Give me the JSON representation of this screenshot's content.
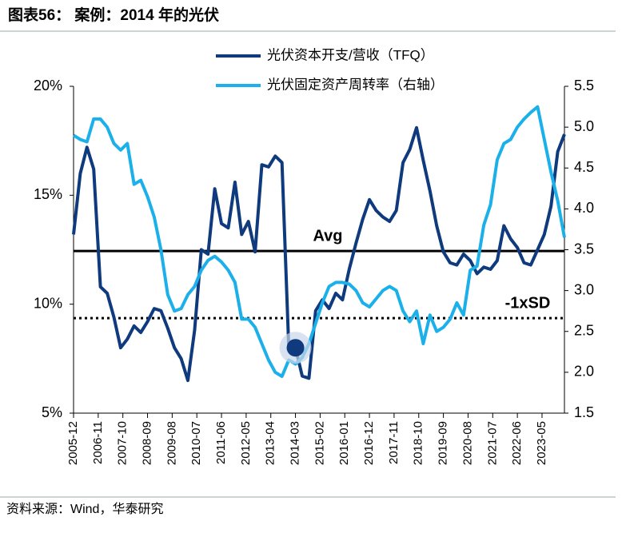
{
  "title": "图表56：  案例：2014 年的光伏",
  "source": "资料来源：Wind，华泰研究",
  "chart_data": {
    "type": "line",
    "x": [
      "2005-12",
      "2006-03",
      "2006-06",
      "2006-09",
      "2006-12",
      "2007-03",
      "2007-06",
      "2007-09",
      "2007-12",
      "2008-03",
      "2008-06",
      "2008-09",
      "2008-12",
      "2009-03",
      "2009-06",
      "2009-09",
      "2009-12",
      "2010-03",
      "2010-06",
      "2010-09",
      "2010-12",
      "2011-03",
      "2011-06",
      "2011-09",
      "2011-12",
      "2012-03",
      "2012-06",
      "2012-09",
      "2012-12",
      "2013-03",
      "2013-06",
      "2013-09",
      "2013-12",
      "2014-03",
      "2014-06",
      "2014-09",
      "2014-12",
      "2015-03",
      "2015-06",
      "2015-09",
      "2015-12",
      "2016-03",
      "2016-06",
      "2016-09",
      "2016-12",
      "2017-03",
      "2017-06",
      "2017-09",
      "2017-12",
      "2018-03",
      "2018-06",
      "2018-09",
      "2018-12",
      "2019-03",
      "2019-06",
      "2019-09",
      "2019-12",
      "2020-03",
      "2020-06",
      "2020-09",
      "2020-12",
      "2021-03",
      "2021-06",
      "2021-09",
      "2021-12",
      "2022-03",
      "2022-06",
      "2022-09",
      "2022-12",
      "2023-03",
      "2023-06",
      "2023-09",
      "2023-12",
      "2024-03"
    ],
    "xlim": [
      "2005-12",
      "2024-03"
    ],
    "xticks": [
      "2005-12",
      "2006-11",
      "2007-10",
      "2008-09",
      "2009-08",
      "2010-07",
      "2011-06",
      "2012-05",
      "2013-04",
      "2014-03",
      "2015-02",
      "2016-01",
      "2016-12",
      "2017-11",
      "2018-10",
      "2019-09",
      "2020-08",
      "2021-07",
      "2022-06",
      "2023-05"
    ],
    "ylim": [
      5,
      20
    ],
    "yticks": [
      {
        "value": 5,
        "label": "5%"
      },
      {
        "value": 10,
        "label": "10%"
      },
      {
        "value": 15,
        "label": "15%"
      },
      {
        "value": 20,
        "label": "20%"
      }
    ],
    "y2lim": [
      1.5,
      5.5
    ],
    "y2ticks": [
      1.5,
      {
        "value": 2,
        "label": "2.0"
      },
      2.5,
      {
        "value": 3,
        "label": "3.0"
      },
      3.5,
      {
        "value": 4,
        "label": "4.0"
      },
      4.5,
      {
        "value": 5,
        "label": "5.0"
      },
      5.5
    ],
    "series": [
      {
        "name": "光伏资本开支/营收（TFQ）",
        "color": "#0f3a7d",
        "values": [
          13.2,
          16.0,
          17.2,
          16.2,
          10.8,
          10.5,
          9.4,
          8.0,
          8.4,
          9.0,
          8.7,
          9.2,
          9.8,
          9.7,
          8.9,
          8.0,
          7.5,
          6.5,
          8.8,
          12.5,
          12.3,
          15.3,
          13.7,
          13.5,
          15.6,
          13.2,
          13.8,
          12.4,
          16.4,
          16.3,
          16.8,
          16.5,
          8.0,
          8.0,
          6.7,
          6.6,
          9.7,
          10.2,
          9.8,
          10.5,
          10.2,
          11.6,
          12.8,
          13.9,
          14.8,
          14.3,
          14.0,
          13.8,
          14.3,
          16.5,
          17.1,
          18.1,
          16.6,
          15.2,
          13.6,
          12.4,
          11.9,
          11.8,
          12.3,
          12.0,
          11.4,
          11.7,
          11.6,
          12.0,
          13.6,
          13.0,
          12.6,
          11.9,
          11.8,
          12.5,
          13.2,
          14.5,
          17.0,
          17.8
        ]
      },
      {
        "name": "光伏固定资产周转率（右轴）",
        "color": "#1cb0ea",
        "axis": "y2",
        "values": [
          4.9,
          4.85,
          4.82,
          5.1,
          5.1,
          5.0,
          4.8,
          4.72,
          4.8,
          4.3,
          4.35,
          4.15,
          3.9,
          3.5,
          2.95,
          2.75,
          2.78,
          2.95,
          3.05,
          3.25,
          3.37,
          3.42,
          3.35,
          3.25,
          3.1,
          2.65,
          2.65,
          2.55,
          2.35,
          2.15,
          2.0,
          1.95,
          2.15,
          2.1,
          2.18,
          2.35,
          2.6,
          2.85,
          3.05,
          3.1,
          3.1,
          3.08,
          3.0,
          2.85,
          2.8,
          2.9,
          3.0,
          3.05,
          3.0,
          2.75,
          2.62,
          2.75,
          2.35,
          2.7,
          2.5,
          2.55,
          2.65,
          2.85,
          2.7,
          3.25,
          3.3,
          3.8,
          4.05,
          4.6,
          4.8,
          4.85,
          5.0,
          5.1,
          5.18,
          5.25,
          4.85,
          4.45,
          4.1,
          3.65
        ]
      }
    ],
    "reference_lines": [
      {
        "label": "Avg",
        "value": 12.44,
        "style": "solid"
      },
      {
        "label": "-1xSD",
        "value": 9.36,
        "style": "dotted"
      }
    ],
    "highlight": {
      "x": "2014-03",
      "value": 8.0,
      "color": "#0f3a7d"
    }
  }
}
